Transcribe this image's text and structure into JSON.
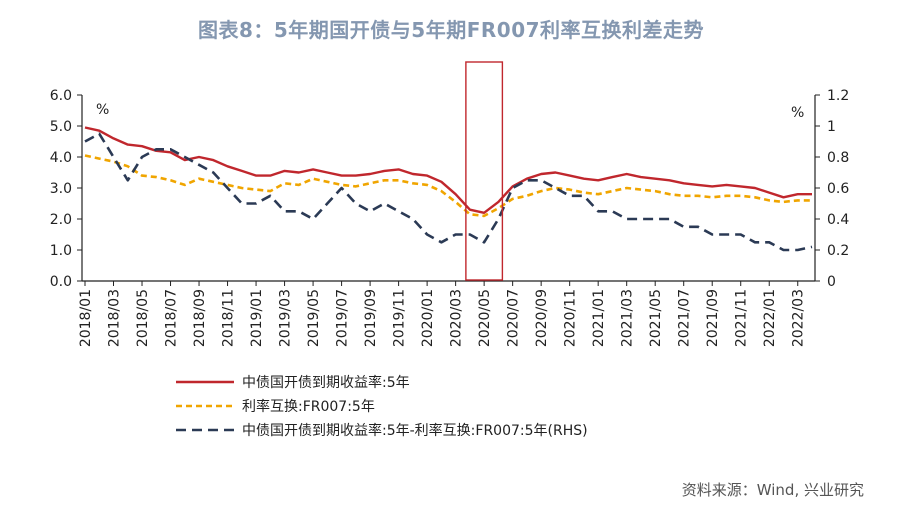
{
  "title": "图表8：5年期国开债与5年期FR007利率互换利差走势",
  "source": "资料来源：Wind, 兴业研究",
  "chart_data": {
    "type": "line",
    "title": "图表8：5年期国开债与5年期FR007利率互换利差走势",
    "left_unit": "%",
    "right_unit": "%",
    "y_left": {
      "range": [
        0,
        6
      ],
      "ticks": [
        "0.0",
        "1.0",
        "2.0",
        "3.0",
        "4.0",
        "5.0",
        "6.0"
      ]
    },
    "y_right": {
      "range": [
        0,
        1.2
      ],
      "ticks": [
        "0",
        "0.2",
        "0.4",
        "0.6",
        "0.8",
        "1",
        "1.2"
      ]
    },
    "x_ticks": [
      "2018/01",
      "2018/03",
      "2018/05",
      "2018/07",
      "2018/09",
      "2018/11",
      "2019/01",
      "2019/03",
      "2019/05",
      "2019/07",
      "2019/09",
      "2019/11",
      "2020/01",
      "2020/03",
      "2020/05",
      "2020/07",
      "2020/09",
      "2020/11",
      "2021/01",
      "2021/03",
      "2021/05",
      "2021/07",
      "2021/09",
      "2021/11",
      "2022/01",
      "2022/03"
    ],
    "x_months": [
      "2018/01",
      "2018/02",
      "2018/03",
      "2018/04",
      "2018/05",
      "2018/06",
      "2018/07",
      "2018/08",
      "2018/09",
      "2018/10",
      "2018/11",
      "2018/12",
      "2019/01",
      "2019/02",
      "2019/03",
      "2019/04",
      "2019/05",
      "2019/06",
      "2019/07",
      "2019/08",
      "2019/09",
      "2019/10",
      "2019/11",
      "2019/12",
      "2020/01",
      "2020/02",
      "2020/03",
      "2020/04",
      "2020/05",
      "2020/06",
      "2020/07",
      "2020/08",
      "2020/09",
      "2020/10",
      "2020/11",
      "2020/12",
      "2021/01",
      "2021/02",
      "2021/03",
      "2021/04",
      "2021/05",
      "2021/06",
      "2021/07",
      "2021/08",
      "2021/09",
      "2021/10",
      "2021/11",
      "2021/12",
      "2022/01",
      "2022/02",
      "2022/03",
      "2022/04"
    ],
    "series": [
      {
        "name": "中债国开债到期收益率:5年",
        "axis": "left",
        "color": "#c0272d",
        "style": "solid",
        "values": [
          4.95,
          4.85,
          4.6,
          4.4,
          4.35,
          4.2,
          4.15,
          3.9,
          4.0,
          3.9,
          3.7,
          3.55,
          3.4,
          3.4,
          3.55,
          3.5,
          3.6,
          3.5,
          3.4,
          3.4,
          3.45,
          3.55,
          3.6,
          3.45,
          3.4,
          3.2,
          2.8,
          2.3,
          2.2,
          2.55,
          3.05,
          3.3,
          3.45,
          3.5,
          3.4,
          3.3,
          3.25,
          3.35,
          3.45,
          3.35,
          3.3,
          3.25,
          3.15,
          3.1,
          3.05,
          3.1,
          3.05,
          3.0,
          2.85,
          2.7,
          2.8,
          2.8
        ]
      },
      {
        "name": "利率互换:FR007:5年",
        "axis": "left",
        "color": "#f0a500",
        "style": "dashed",
        "values": [
          4.05,
          3.95,
          3.85,
          3.7,
          3.4,
          3.35,
          3.25,
          3.1,
          3.3,
          3.2,
          3.1,
          3.0,
          2.95,
          2.9,
          3.15,
          3.1,
          3.3,
          3.2,
          3.1,
          3.05,
          3.15,
          3.25,
          3.25,
          3.15,
          3.1,
          2.9,
          2.55,
          2.15,
          2.1,
          2.35,
          2.65,
          2.75,
          2.9,
          3.0,
          2.95,
          2.85,
          2.8,
          2.9,
          3.0,
          2.95,
          2.9,
          2.8,
          2.75,
          2.75,
          2.7,
          2.75,
          2.75,
          2.7,
          2.6,
          2.55,
          2.6,
          2.6
        ]
      },
      {
        "name": "中债国开债到期收益率:5年-利率互换:FR007:5年(RHS)",
        "axis": "right",
        "color": "#2b3a55",
        "style": "longdash",
        "values": [
          0.9,
          0.95,
          0.8,
          0.65,
          0.8,
          0.85,
          0.85,
          0.8,
          0.75,
          0.7,
          0.6,
          0.5,
          0.5,
          0.55,
          0.45,
          0.45,
          0.4,
          0.5,
          0.6,
          0.5,
          0.45,
          0.5,
          0.45,
          0.4,
          0.3,
          0.25,
          0.3,
          0.3,
          0.25,
          0.4,
          0.6,
          0.65,
          0.65,
          0.6,
          0.55,
          0.55,
          0.45,
          0.45,
          0.4,
          0.4,
          0.4,
          0.4,
          0.35,
          0.35,
          0.3,
          0.3,
          0.3,
          0.25,
          0.25,
          0.2,
          0.2,
          0.22
        ]
      }
    ],
    "highlight": {
      "from": "2020/04",
      "to": "2020/06",
      "color": "#c0272d"
    },
    "grid": false,
    "legend_position": "bottom-left"
  }
}
